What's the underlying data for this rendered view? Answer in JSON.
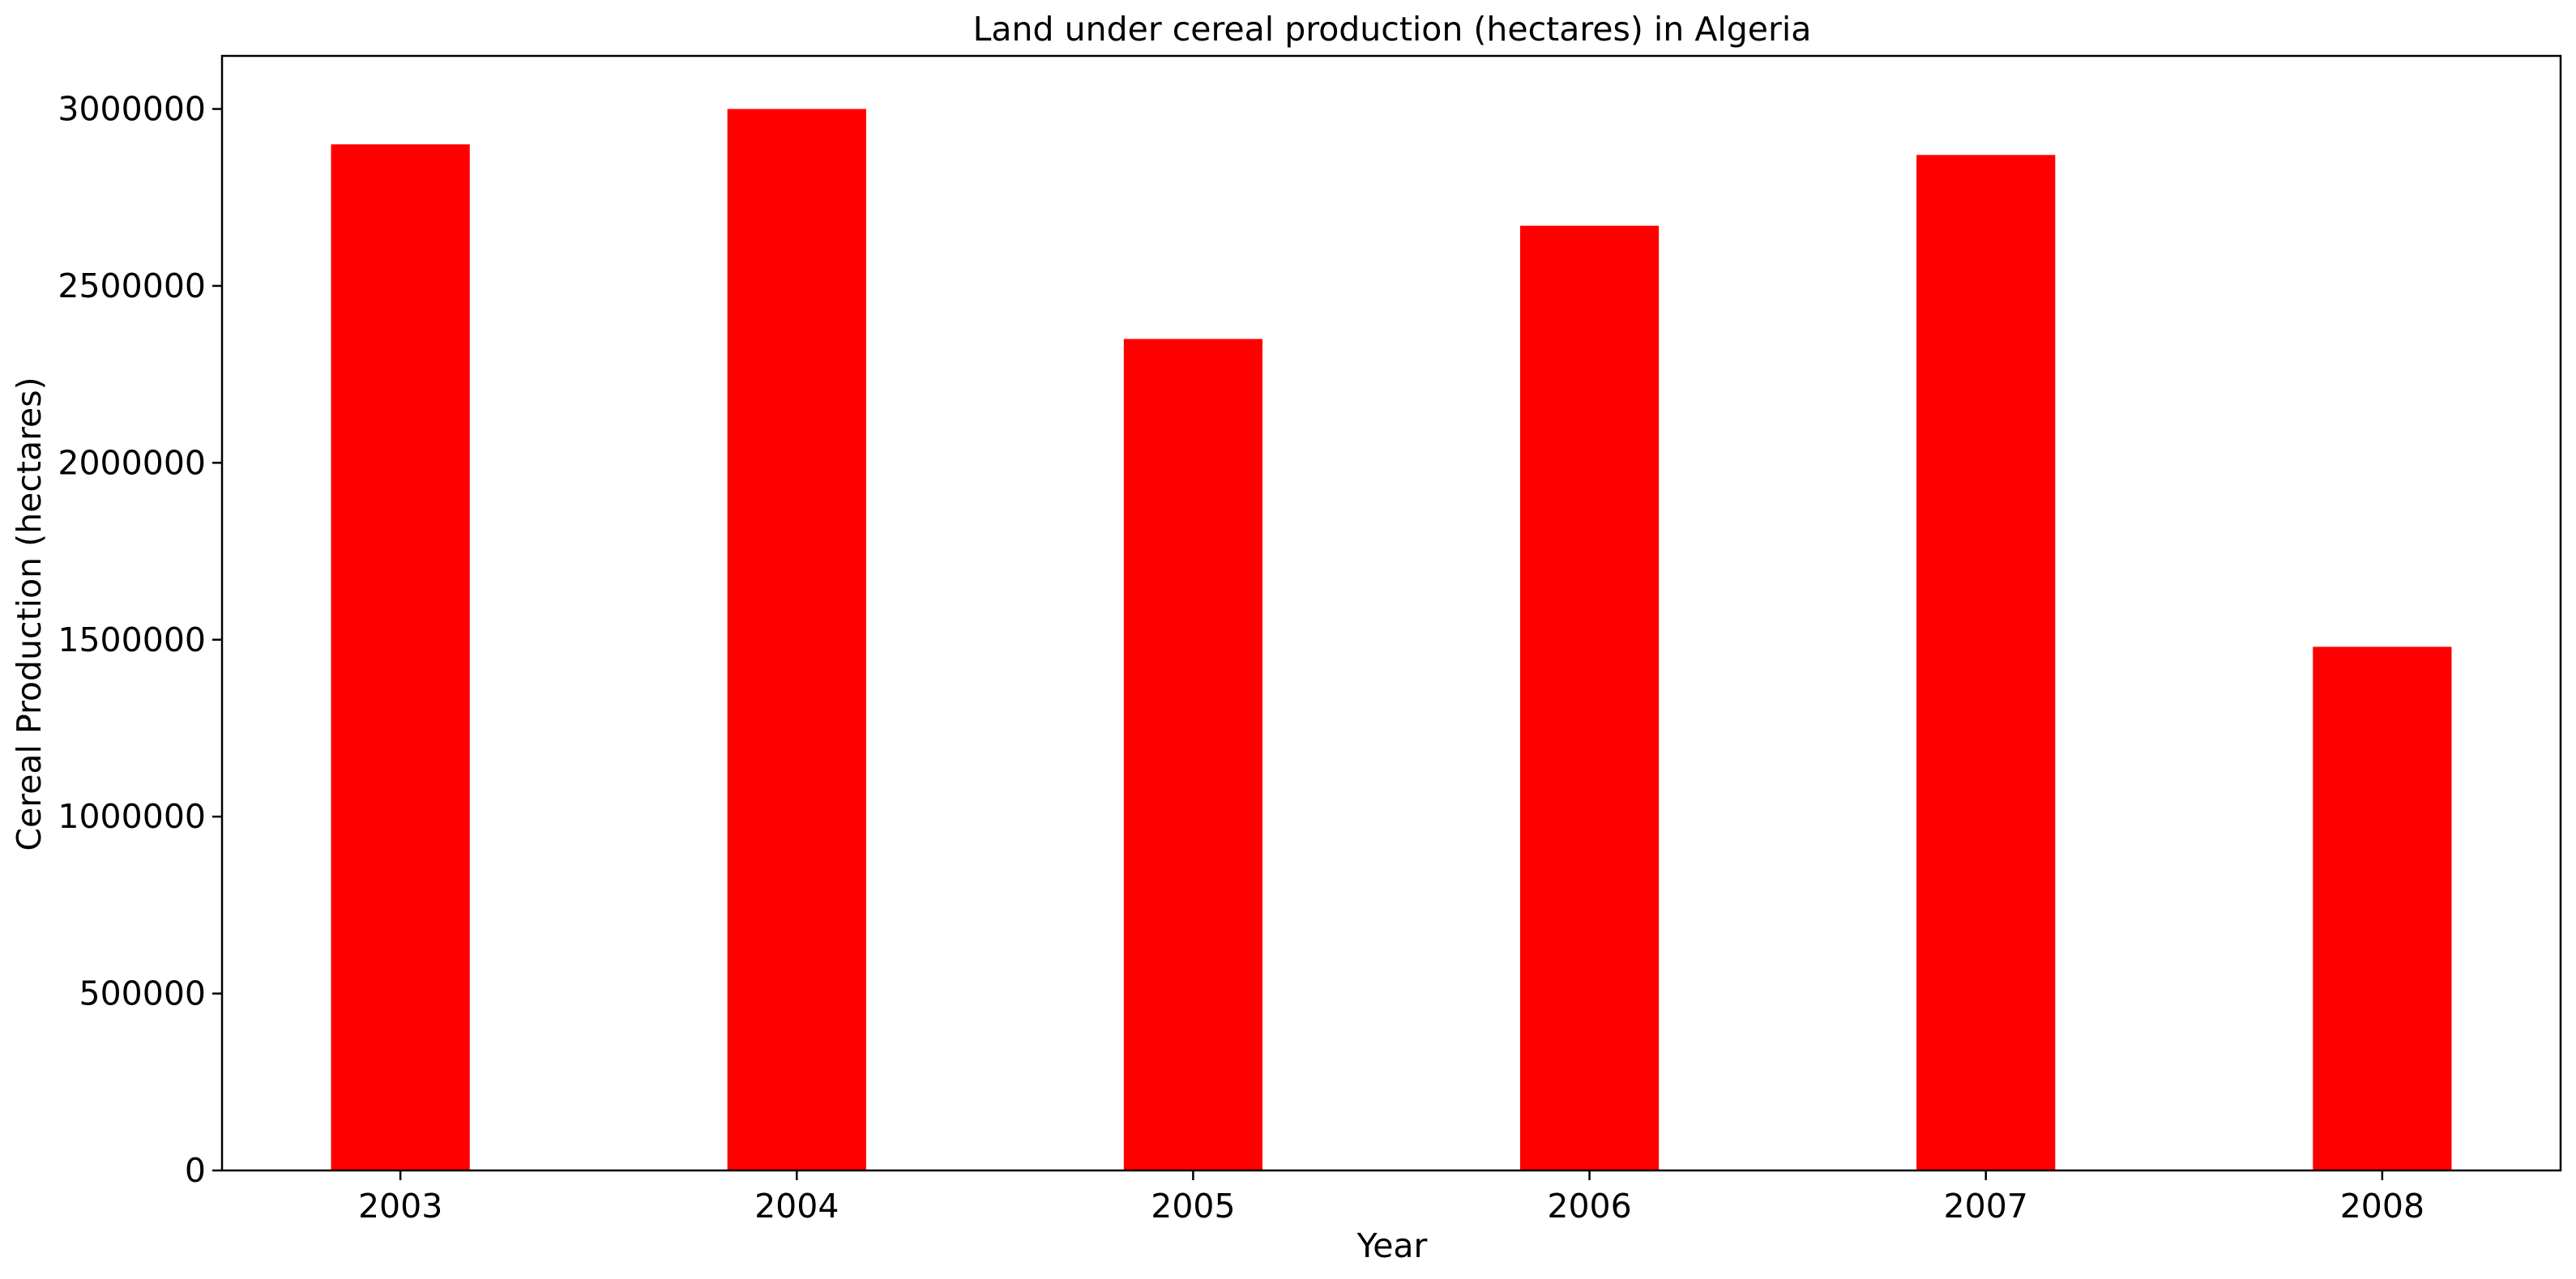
{
  "chart_data": {
    "type": "bar",
    "title": "Land under cereal production (hectares) in Algeria",
    "xlabel": "Year",
    "ylabel": "Cereal Production (hectares)",
    "categories": [
      "2003",
      "2004",
      "2005",
      "2006",
      "2007",
      "2008"
    ],
    "values": [
      2900000,
      3000000,
      2350000,
      2670000,
      2870000,
      1480000
    ],
    "ylim": [
      0,
      3150000
    ],
    "yticks": [
      0,
      500000,
      1000000,
      1500000,
      2000000,
      2500000,
      3000000
    ],
    "ytick_labels": [
      "0",
      "500000",
      "1000000",
      "1500000",
      "2000000",
      "2500000",
      "3000000"
    ],
    "bar_color": "#ff0000",
    "grid": false,
    "legend": "none"
  }
}
